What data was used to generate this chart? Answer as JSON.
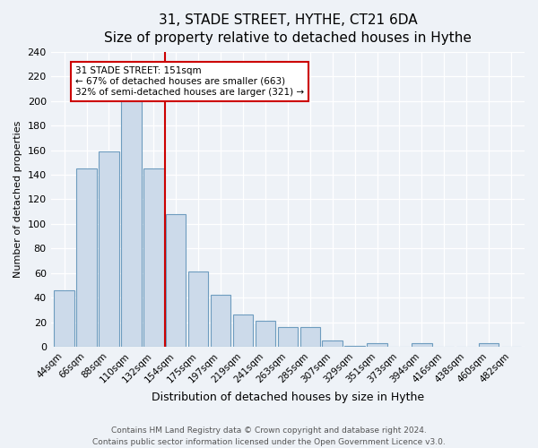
{
  "title": "31, STADE STREET, HYTHE, CT21 6DA",
  "subtitle": "Size of property relative to detached houses in Hythe",
  "xlabel": "Distribution of detached houses by size in Hythe",
  "ylabel": "Number of detached properties",
  "bar_labels": [
    "44sqm",
    "66sqm",
    "88sqm",
    "110sqm",
    "132sqm",
    "154sqm",
    "175sqm",
    "197sqm",
    "219sqm",
    "241sqm",
    "263sqm",
    "285sqm",
    "307sqm",
    "329sqm",
    "351sqm",
    "373sqm",
    "394sqm",
    "416sqm",
    "438sqm",
    "460sqm",
    "482sqm"
  ],
  "bar_values": [
    46,
    145,
    159,
    201,
    145,
    108,
    61,
    42,
    26,
    21,
    16,
    16,
    5,
    1,
    3,
    0,
    3,
    0,
    0,
    3,
    0
  ],
  "bar_color": "#ccdaea",
  "bar_edge_color": "#6e9cbf",
  "vline_color": "#cc0000",
  "vline_pos": 4.5,
  "annotation_title": "31 STADE STREET: 151sqm",
  "annotation_line1": "← 67% of detached houses are smaller (663)",
  "annotation_line2": "32% of semi-detached houses are larger (321) →",
  "annotation_box_facecolor": "#ffffff",
  "annotation_box_edgecolor": "#cc0000",
  "ylim": [
    0,
    240
  ],
  "yticks": [
    0,
    20,
    40,
    60,
    80,
    100,
    120,
    140,
    160,
    180,
    200,
    220,
    240
  ],
  "footer1": "Contains HM Land Registry data © Crown copyright and database right 2024.",
  "footer2": "Contains public sector information licensed under the Open Government Licence v3.0.",
  "bg_color": "#eef2f7",
  "plot_bg_color": "#eef2f7",
  "grid_color": "#ffffff",
  "title_fontsize": 11,
  "subtitle_fontsize": 10,
  "xlabel_fontsize": 9,
  "ylabel_fontsize": 8,
  "tick_fontsize": 8,
  "xtick_fontsize": 7.5,
  "footer_fontsize": 6.5
}
